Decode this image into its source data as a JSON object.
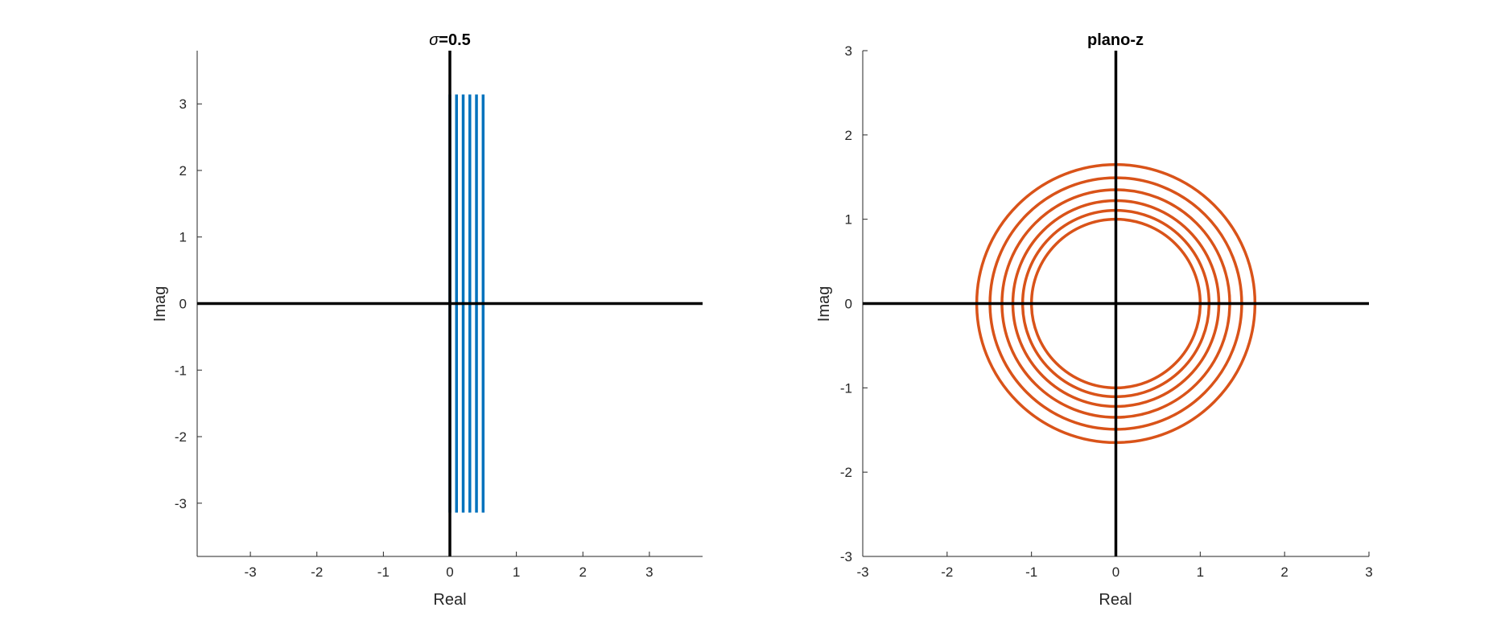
{
  "chart_data": [
    {
      "type": "line",
      "title": "=0.5",
      "title_symbol": "σ",
      "xlabel": "Real",
      "ylabel": "Imag",
      "xlim": [
        -3.8,
        3.8
      ],
      "ylim": [
        -3.8,
        3.8
      ],
      "xticks": [
        -3,
        -2,
        -1,
        0,
        1,
        2,
        3
      ],
      "yticks": [
        -3,
        -2,
        -1,
        0,
        1,
        2,
        3
      ],
      "grid": false,
      "reference_lines": {
        "x": 0,
        "y": 0,
        "color": "#000000"
      },
      "series": [
        {
          "kind": "vertical-segments",
          "color": "#0072BD",
          "x": [
            0,
            0.1,
            0.2,
            0.3,
            0.4,
            0.5
          ],
          "y_range": [
            -3.1416,
            3.1416
          ]
        }
      ]
    },
    {
      "type": "line",
      "title": "plano-z",
      "xlabel": "Real",
      "ylabel": "Imag",
      "xlim": [
        -3,
        3
      ],
      "ylim": [
        -3,
        3
      ],
      "xticks": [
        -3,
        -2,
        -1,
        0,
        1,
        2,
        3
      ],
      "yticks": [
        -3,
        -2,
        -1,
        0,
        1,
        2,
        3
      ],
      "grid": false,
      "reference_lines": {
        "x": 0,
        "y": 0,
        "color": "#000000"
      },
      "series": [
        {
          "kind": "circles",
          "color": "#D95319",
          "center": [
            0,
            0
          ],
          "radii": [
            1.0,
            1.105,
            1.221,
            1.35,
            1.492,
            1.649
          ]
        }
      ]
    }
  ]
}
